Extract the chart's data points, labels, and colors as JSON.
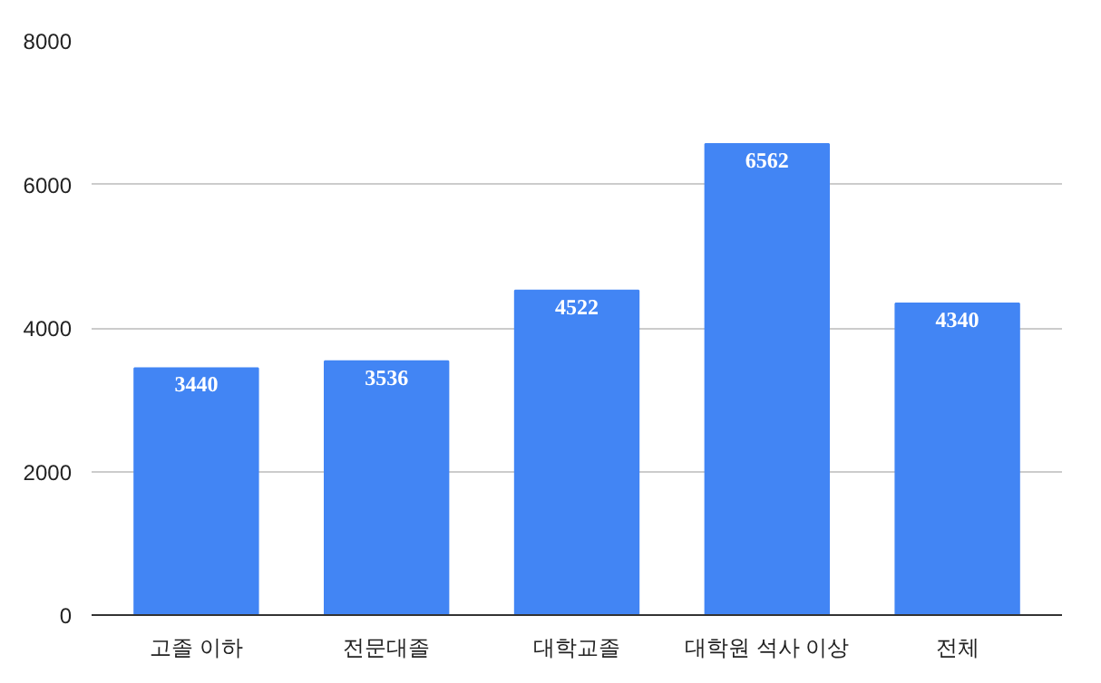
{
  "chart_data": {
    "type": "bar",
    "categories": [
      "고졸 이하",
      "전문대졸",
      "대학교졸",
      "대학원 석사 이상",
      "전체"
    ],
    "values": [
      3440,
      3536,
      4522,
      6562,
      4340
    ],
    "color": "#4285f4",
    "ylim": [
      0,
      8000
    ],
    "yticks": [
      0,
      2000,
      4000,
      6000,
      8000
    ],
    "grid": "y",
    "data_labels": true
  }
}
